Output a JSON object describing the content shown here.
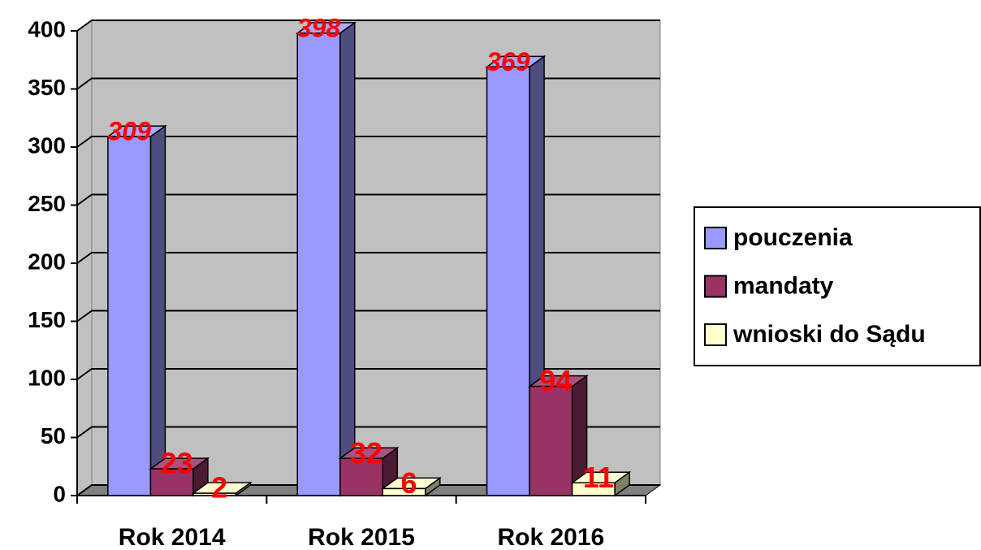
{
  "chart_data": {
    "type": "bar3d",
    "categories": [
      "Rok 2014",
      "Rok 2015",
      "Rok 2016"
    ],
    "series": [
      {
        "name": "pouczenia",
        "color": "#9999ff",
        "values": [
          309,
          398,
          369
        ]
      },
      {
        "name": "mandaty",
        "color": "#993366",
        "values": [
          23,
          32,
          94
        ]
      },
      {
        "name": "wnioski do Sądu",
        "color": "#ffffcc",
        "values": [
          2,
          6,
          11
        ]
      }
    ],
    "ylim": [
      0,
      400
    ],
    "yticks": [
      0,
      50,
      100,
      150,
      200,
      250,
      300,
      350,
      400
    ],
    "grid": true,
    "legend": "right"
  }
}
